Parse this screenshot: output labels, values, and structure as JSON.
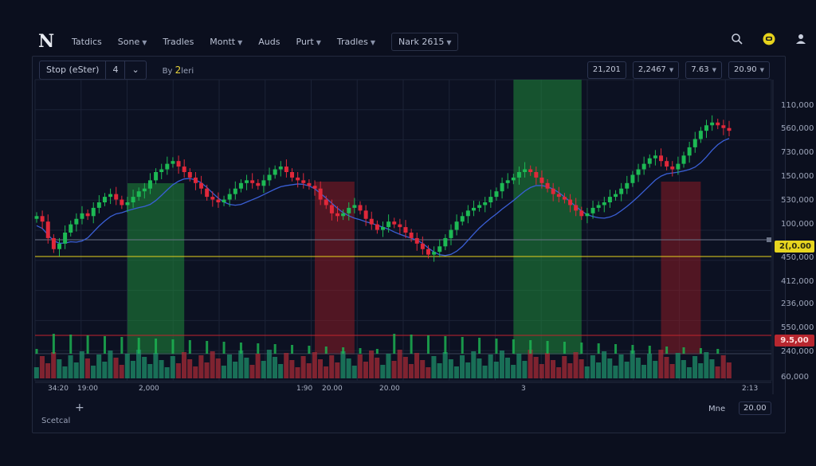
{
  "topbar": {
    "logo": "N",
    "menu": [
      {
        "label": "Tatdics",
        "caret": false
      },
      {
        "label": "Sone",
        "caret": true
      },
      {
        "label": "Tradles",
        "caret": false
      },
      {
        "label": "Montt",
        "caret": true
      },
      {
        "label": "Auds",
        "caret": false
      },
      {
        "label": "Purt",
        "caret": true
      },
      {
        "label": "Tradles",
        "caret": true
      },
      {
        "label": "Nark 2615",
        "caret": true
      }
    ],
    "icons": [
      "search-icon",
      "notification-icon",
      "user-icon"
    ]
  },
  "toolbar": {
    "symbol": "Stop (eSter)",
    "symbol_suffix": "4",
    "by_prefix": "By",
    "by_value": "2",
    "by_suffix": "leri"
  },
  "controls": [
    "21,201",
    "2,2467",
    "7.63",
    "20.90"
  ],
  "y_axis_labels": [
    "110,000",
    "560,000",
    "730,000",
    "150,000",
    "530,000",
    "100,000",
    "450,000",
    "412,000",
    "236,000",
    "550,000",
    "240,000",
    "60,000"
  ],
  "x_axis_labels": [
    "34:20",
    "19:00",
    "2,000",
    "1:90",
    "20.00",
    "20.00",
    "3",
    "2:13"
  ],
  "price_tags": {
    "yellow": "2(,0.00",
    "red": "9.5,00"
  },
  "bottom": {
    "scale": "Scetcal",
    "mine_label": "Mne",
    "mine_value": "20.00"
  },
  "colors": {
    "background": "#0b0f1e",
    "bull": "#1db954",
    "bear": "#e0283a",
    "ma_line": "#3a5fd6",
    "yellow_line": "#e6d21c",
    "red_line": "#c2242d",
    "zone_green": "#1f8a3a",
    "zone_red": "#8a1c24"
  },
  "chart_data": {
    "type": "candlestick",
    "price_line_yellow": "2(,0.00",
    "price_line_red": "9.5,00",
    "highlight_zones": [
      {
        "color": "green",
        "from": 16,
        "to": 26
      },
      {
        "color": "red",
        "from": 49,
        "to": 56
      },
      {
        "color": "green",
        "from": 84,
        "to": 96
      },
      {
        "color": "red",
        "from": 110,
        "to": 117
      }
    ],
    "close": [
      72,
      70,
      64,
      60,
      62,
      66,
      69,
      71,
      73,
      72,
      75,
      77,
      79,
      80,
      78,
      76,
      77,
      79,
      81,
      82,
      85,
      88,
      89,
      91,
      92,
      90,
      88,
      86,
      84,
      82,
      79,
      78,
      77,
      78,
      80,
      82,
      84,
      85,
      84,
      83,
      85,
      87,
      89,
      90,
      88,
      86,
      85,
      84,
      83,
      82,
      78,
      76,
      73,
      72,
      73,
      75,
      76,
      74,
      71,
      69,
      67,
      68,
      70,
      69,
      68,
      66,
      64,
      62,
      60,
      58,
      59,
      61,
      64,
      67,
      70,
      72,
      74,
      75,
      76,
      77,
      79,
      81,
      84,
      85,
      86,
      88,
      89,
      88,
      86,
      84,
      82,
      80,
      79,
      78,
      76,
      74,
      72,
      73,
      75,
      76,
      77,
      79,
      80,
      82,
      84,
      87,
      89,
      91,
      93,
      94,
      92,
      90,
      89,
      91,
      94,
      97,
      100,
      103,
      105,
      106,
      105,
      104,
      103
    ]
  }
}
